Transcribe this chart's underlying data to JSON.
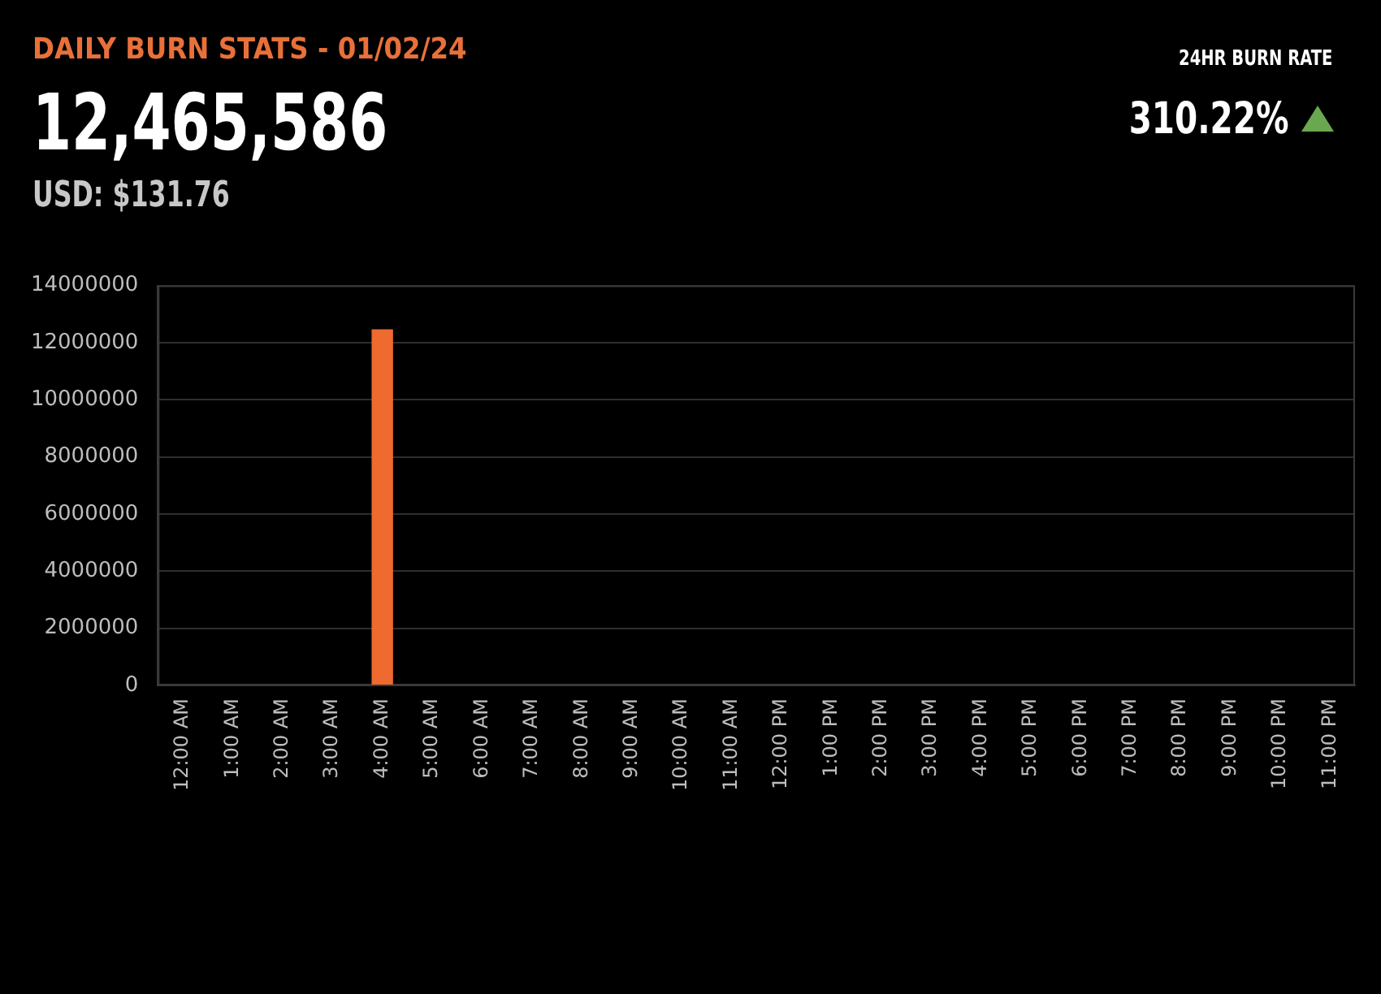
{
  "chart_data": {
    "type": "bar",
    "title": "DAILY BURN STATS - 01/02/24",
    "annotations": [
      "12,465,586",
      "USD: $131.76",
      "24HR BURN RATE",
      "310.22%"
    ],
    "categories": [
      "12:00 AM",
      "1:00 AM",
      "2:00 AM",
      "3:00 AM",
      "4:00 AM",
      "5:00 AM",
      "6:00 AM",
      "7:00 AM",
      "8:00 AM",
      "9:00 AM",
      "10:00 AM",
      "11:00 AM",
      "12:00 PM",
      "1:00 PM",
      "2:00 PM",
      "3:00 PM",
      "4:00 PM",
      "5:00 PM",
      "6:00 PM",
      "7:00 PM",
      "8:00 PM",
      "9:00 PM",
      "10:00 PM",
      "11:00 PM"
    ],
    "values": [
      0,
      0,
      0,
      0,
      12470000,
      0,
      0,
      0,
      0,
      0,
      0,
      0,
      0,
      0,
      0,
      0,
      0,
      0,
      0,
      0,
      0,
      0,
      0,
      0
    ],
    "color": "#ee6a2f",
    "ylim": [
      0,
      14000000
    ],
    "yticks": [
      0,
      2000000,
      4000000,
      6000000,
      8000000,
      10000000,
      12000000,
      14000000
    ],
    "grid": "y"
  }
}
